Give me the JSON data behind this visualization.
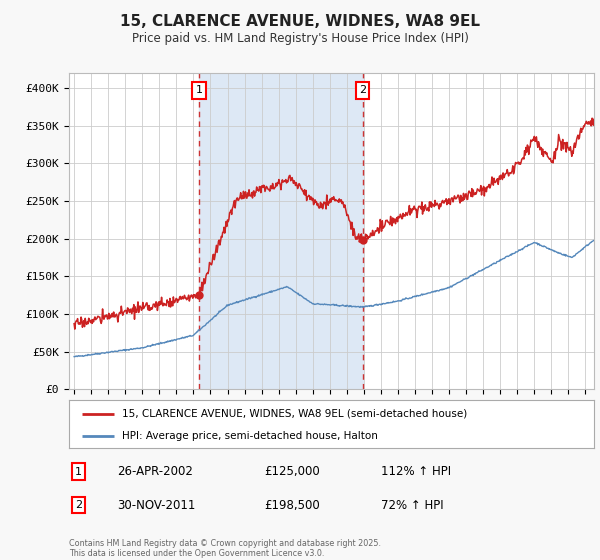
{
  "title": "15, CLARENCE AVENUE, WIDNES, WA8 9EL",
  "subtitle": "Price paid vs. HM Land Registry's House Price Index (HPI)",
  "bg_color": "#f8f8f8",
  "plot_bg_color": "#ffffff",
  "grid_color": "#cccccc",
  "fill_between_color": "#dde8f5",
  "hpi_color": "#5588bb",
  "price_color": "#cc2222",
  "dashed_color": "#cc3333",
  "marker1_x": 2002.32,
  "marker2_x": 2011.92,
  "marker1_y": 125000,
  "marker2_y": 198500,
  "ylim": [
    0,
    420000
  ],
  "xlim_start": 1994.7,
  "xlim_end": 2025.5,
  "legend_label_price": "15, CLARENCE AVENUE, WIDNES, WA8 9EL (semi-detached house)",
  "legend_label_hpi": "HPI: Average price, semi-detached house, Halton",
  "footer": "Contains HM Land Registry data © Crown copyright and database right 2025.\nThis data is licensed under the Open Government Licence v3.0.",
  "ytick_labels": [
    "£0",
    "£50K",
    "£100K",
    "£150K",
    "£200K",
    "£250K",
    "£300K",
    "£350K",
    "£400K"
  ],
  "ytick_values": [
    0,
    50000,
    100000,
    150000,
    200000,
    250000,
    300000,
    350000,
    400000
  ]
}
